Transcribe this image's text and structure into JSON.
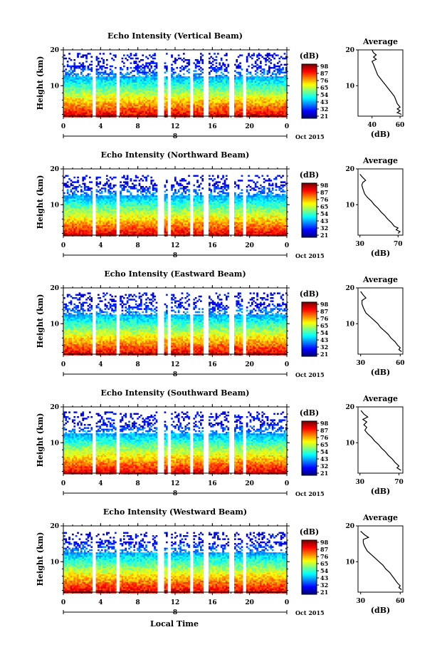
{
  "figure": {
    "xlabel": "Local Time",
    "date_label": "Oct 2015",
    "colorbar_unit": "(dB)",
    "avg_title": "Average",
    "avg_xlabel": "(dB)",
    "ylabel": "Height (km)"
  },
  "chart_data": [
    {
      "type": "heatmap",
      "title": "Echo Intensity (Vertical Beam)",
      "ylabel": "Height (km)",
      "xlabel": "Local Time",
      "xticks": [
        "0",
        "4",
        "8",
        "12",
        "16",
        "20",
        "0"
      ],
      "xlim": [
        0,
        24
      ],
      "date_marker": "8",
      "yticks": [
        "20",
        "10"
      ],
      "ylim": [
        1.5,
        20
      ],
      "colorbar": {
        "label": "(dB)",
        "ticks": [
          "98",
          "87",
          "76",
          "65",
          "54",
          "43",
          "32",
          "21"
        ],
        "range": [
          21,
          98
        ]
      },
      "gaps_hours": [
        3.2,
        5.8,
        10.2,
        10.6,
        11.3,
        13.7,
        15.2,
        18.0,
        19.4
      ],
      "top_height_km": 19.5,
      "average_profile": {
        "title": "Average",
        "xlabel": "(dB)",
        "xticks": [
          "40",
          "60"
        ],
        "xlim": [
          30,
          62
        ],
        "yticks": [
          "20",
          "10"
        ],
        "points": [
          [
            40,
            20
          ],
          [
            41,
            19.2
          ],
          [
            43,
            18.6
          ],
          [
            41,
            18
          ],
          [
            43,
            17.4
          ],
          [
            40,
            16.8
          ],
          [
            41,
            16
          ],
          [
            42,
            15
          ],
          [
            43,
            14
          ],
          [
            44,
            13
          ],
          [
            46,
            12
          ],
          [
            48,
            11
          ],
          [
            50,
            10
          ],
          [
            52,
            9
          ],
          [
            54,
            8
          ],
          [
            56,
            7
          ],
          [
            57,
            6
          ],
          [
            58,
            5
          ],
          [
            60,
            4
          ],
          [
            58,
            3.5
          ],
          [
            60,
            3
          ],
          [
            58,
            2.5
          ],
          [
            61,
            2
          ]
        ]
      }
    },
    {
      "type": "heatmap",
      "title": "Echo Intensity (Northward Beam)",
      "ylabel": "Height (km)",
      "xlabel": "Local Time",
      "xticks": [
        "0",
        "4",
        "8",
        "12",
        "16",
        "20",
        "0"
      ],
      "xlim": [
        0,
        24
      ],
      "date_marker": "8",
      "yticks": [
        "20",
        "10"
      ],
      "ylim": [
        1.5,
        20
      ],
      "colorbar": {
        "label": "(dB)",
        "ticks": [
          "98",
          "87",
          "76",
          "65",
          "54",
          "43",
          "32",
          "21"
        ],
        "range": [
          21,
          98
        ]
      },
      "gaps_hours": [
        3.2,
        5.8,
        10.2,
        10.6,
        11.3,
        13.7,
        15.2,
        18.0,
        19.4
      ],
      "top_height_km": 18.5,
      "average_profile": {
        "title": "Average",
        "xlabel": "(dB)",
        "xticks": [
          "30",
          "70"
        ],
        "xlim": [
          28,
          75
        ],
        "yticks": [
          "20",
          "10"
        ],
        "points": [
          [
            30,
            18.5
          ],
          [
            33,
            17.6
          ],
          [
            36,
            16.8
          ],
          [
            33,
            16.2
          ],
          [
            32,
            15.5
          ],
          [
            33,
            14.5
          ],
          [
            35,
            13
          ],
          [
            38,
            12
          ],
          [
            42,
            11
          ],
          [
            45,
            10
          ],
          [
            49,
            9
          ],
          [
            52,
            8
          ],
          [
            56,
            7
          ],
          [
            59,
            6
          ],
          [
            63,
            5
          ],
          [
            66,
            4
          ],
          [
            70,
            3.5
          ],
          [
            68,
            3
          ],
          [
            72,
            2.5
          ],
          [
            70,
            2
          ]
        ]
      }
    },
    {
      "type": "heatmap",
      "title": "Echo Intensity (Eastward Beam)",
      "ylabel": "Height (km)",
      "xlabel": "Local Time",
      "xticks": [
        "0",
        "4",
        "8",
        "12",
        "16",
        "20",
        "0"
      ],
      "xlim": [
        0,
        24
      ],
      "date_marker": "8",
      "yticks": [
        "20",
        "10"
      ],
      "ylim": [
        1.5,
        20
      ],
      "colorbar": {
        "label": "(dB)",
        "ticks": [
          "98",
          "87",
          "76",
          "65",
          "54",
          "43",
          "32",
          "21"
        ],
        "range": [
          21,
          98
        ]
      },
      "gaps_hours": [
        3.2,
        5.8,
        10.2,
        10.6,
        11.3,
        13.7,
        15.2,
        18.0,
        19.4
      ],
      "top_height_km": 19.0,
      "average_profile": {
        "title": "Average",
        "xlabel": "(dB)",
        "xticks": [
          "30",
          "60"
        ],
        "xlim": [
          28,
          62
        ],
        "yticks": [
          "20",
          "10"
        ],
        "points": [
          [
            30,
            19
          ],
          [
            32,
            18
          ],
          [
            34,
            17.2
          ],
          [
            31,
            16.5
          ],
          [
            31,
            15.5
          ],
          [
            32,
            14.5
          ],
          [
            34,
            13
          ],
          [
            37,
            12
          ],
          [
            40,
            11
          ],
          [
            43,
            10
          ],
          [
            45,
            9
          ],
          [
            48,
            8
          ],
          [
            51,
            7
          ],
          [
            53,
            6
          ],
          [
            56,
            5
          ],
          [
            58,
            4
          ],
          [
            60,
            3.3
          ],
          [
            59,
            2.8
          ],
          [
            61,
            2.2
          ]
        ]
      }
    },
    {
      "type": "heatmap",
      "title": "Echo Intensity (Southward Beam)",
      "ylabel": "Height (km)",
      "xlabel": "Local Time",
      "xticks": [
        "0",
        "4",
        "8",
        "12",
        "16",
        "20",
        "0"
      ],
      "xlim": [
        0,
        24
      ],
      "date_marker": "8",
      "yticks": [
        "20",
        "10"
      ],
      "ylim": [
        1.5,
        20
      ],
      "colorbar": {
        "label": "(dB)",
        "ticks": [
          "98",
          "87",
          "76",
          "65",
          "54",
          "43",
          "32",
          "21"
        ],
        "range": [
          21,
          98
        ]
      },
      "gaps_hours": [
        3.2,
        5.8,
        10.2,
        10.6,
        11.3,
        13.7,
        15.2,
        18.0,
        19.4
      ],
      "top_height_km": 19.0,
      "average_profile": {
        "title": "Average",
        "xlabel": "(dB)",
        "xticks": [
          "30",
          "70"
        ],
        "xlim": [
          28,
          74
        ],
        "yticks": [
          "20",
          "10"
        ],
        "points": [
          [
            31,
            19
          ],
          [
            34,
            18
          ],
          [
            38,
            17.2
          ],
          [
            33,
            16.5
          ],
          [
            37,
            15.8
          ],
          [
            34,
            15
          ],
          [
            37,
            14.3
          ],
          [
            35,
            13.5
          ],
          [
            38,
            12.5
          ],
          [
            42,
            11.5
          ],
          [
            45,
            10.5
          ],
          [
            49,
            9.5
          ],
          [
            52,
            8.5
          ],
          [
            56,
            7.5
          ],
          [
            59,
            6.5
          ],
          [
            63,
            5.5
          ],
          [
            66,
            4.5
          ],
          [
            70,
            3.5
          ],
          [
            68,
            3
          ],
          [
            72,
            2.3
          ]
        ]
      }
    },
    {
      "type": "heatmap",
      "title": "Echo Intensity (Westward Beam)",
      "ylabel": "Height (km)",
      "xlabel": "Local Time",
      "xticks": [
        "0",
        "4",
        "8",
        "12",
        "16",
        "20",
        "0"
      ],
      "xlim": [
        0,
        24
      ],
      "date_marker": "8",
      "yticks": [
        "20",
        "10"
      ],
      "ylim": [
        1.5,
        20
      ],
      "colorbar": {
        "label": "(dB)",
        "ticks": [
          "98",
          "87",
          "76",
          "65",
          "54",
          "43",
          "32",
          "21"
        ],
        "range": [
          21,
          98
        ]
      },
      "gaps_hours": [
        3.2,
        5.8,
        10.2,
        10.6,
        11.3,
        13.7,
        15.2,
        18.0,
        19.4
      ],
      "top_height_km": 18.5,
      "average_profile": {
        "title": "Average",
        "xlabel": "(dB)",
        "xticks": [
          "30",
          "60"
        ],
        "xlim": [
          28,
          62
        ],
        "yticks": [
          "20",
          "10"
        ],
        "points": [
          [
            30,
            18.5
          ],
          [
            33,
            17.5
          ],
          [
            36,
            16.8
          ],
          [
            32,
            16.2
          ],
          [
            32,
            15.3
          ],
          [
            33,
            14.3
          ],
          [
            35,
            13
          ],
          [
            38,
            12
          ],
          [
            41,
            11
          ],
          [
            44,
            10
          ],
          [
            47,
            9
          ],
          [
            49,
            8
          ],
          [
            52,
            7
          ],
          [
            54,
            6
          ],
          [
            56,
            5
          ],
          [
            58,
            4
          ],
          [
            60,
            3.3
          ],
          [
            59,
            2.8
          ],
          [
            61,
            2.2
          ]
        ]
      }
    }
  ]
}
